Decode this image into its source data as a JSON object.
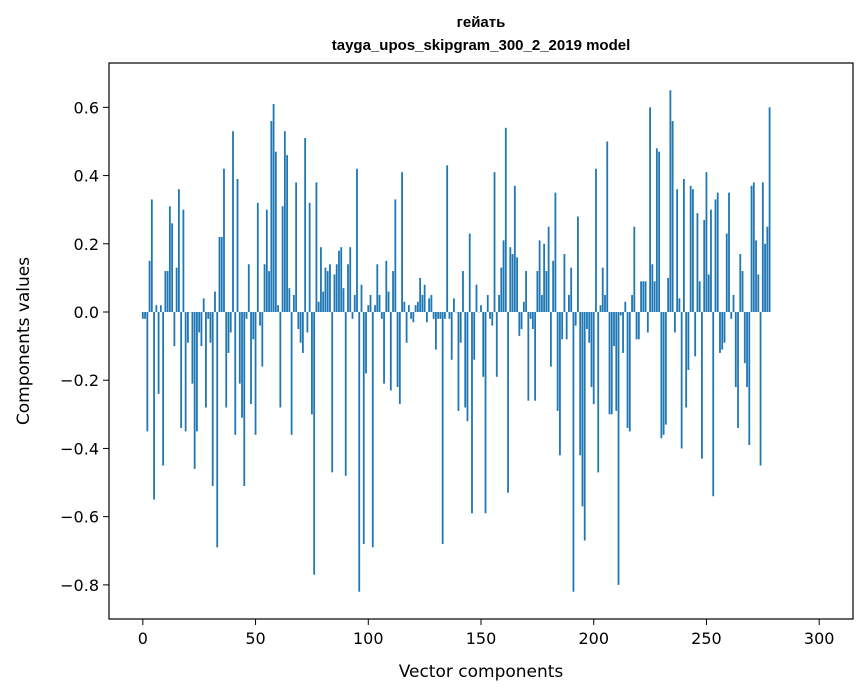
{
  "chart_data": {
    "type": "bar",
    "title": "гейать",
    "subtitle": "tayga_upos_skipgram_300_2_2019 model",
    "xlabel": "Vector components",
    "ylabel": "Components values",
    "xlim": [
      -15,
      315
    ],
    "ylim": [
      -0.9,
      0.73
    ],
    "xticks": [
      0,
      50,
      100,
      150,
      200,
      250,
      300
    ],
    "xtick_labels": [
      "0",
      "50",
      "100",
      "150",
      "200",
      "250",
      "300"
    ],
    "yticks": [
      -0.8,
      -0.6,
      -0.4,
      -0.2,
      0.0,
      0.2,
      0.4,
      0.6
    ],
    "ytick_labels": [
      "−0.8",
      "−0.6",
      "−0.4",
      "−0.2",
      "0.0",
      "0.2",
      "0.4",
      "0.6"
    ],
    "grid": false,
    "bar_color": "#1f77b4",
    "x_start": 0,
    "values": [
      -0.02,
      -0.02,
      -0.35,
      0.15,
      0.33,
      -0.55,
      0.02,
      -0.24,
      0.02,
      -0.45,
      0.12,
      0.12,
      0.31,
      0.26,
      -0.1,
      0.13,
      0.36,
      -0.34,
      0.3,
      -0.35,
      -0.09,
      0.0,
      -0.21,
      -0.46,
      -0.35,
      -0.06,
      -0.1,
      0.04,
      -0.28,
      -0.02,
      -0.09,
      -0.51,
      0.06,
      -0.69,
      0.22,
      0.22,
      0.42,
      -0.28,
      -0.12,
      -0.06,
      0.53,
      -0.36,
      0.39,
      -0.21,
      -0.31,
      -0.51,
      -0.02,
      0.14,
      -0.27,
      -0.08,
      -0.36,
      0.32,
      -0.04,
      -0.16,
      0.14,
      0.3,
      0.12,
      0.56,
      0.61,
      0.47,
      0.02,
      -0.28,
      0.31,
      0.53,
      0.46,
      0.07,
      -0.36,
      0.05,
      0.38,
      -0.05,
      -0.09,
      -0.12,
      0.51,
      -0.06,
      0.32,
      -0.3,
      -0.77,
      0.38,
      0.03,
      0.19,
      0.06,
      0.13,
      0.12,
      0.14,
      -0.47,
      0.11,
      0.14,
      0.18,
      0.19,
      0.07,
      -0.48,
      0.14,
      0.19,
      -0.02,
      0.05,
      0.42,
      -0.82,
      0.08,
      -0.68,
      -0.18,
      0.02,
      0.05,
      -0.69,
      0.02,
      0.14,
      0.05,
      -0.02,
      -0.21,
      0.15,
      0.06,
      -0.23,
      0.12,
      0.33,
      -0.22,
      -0.27,
      0.41,
      0.03,
      -0.09,
      0.02,
      -0.02,
      -0.03,
      0.02,
      0.03,
      0.1,
      0.05,
      0.08,
      -0.03,
      0.04,
      0.05,
      -0.02,
      -0.11,
      -0.02,
      -0.02,
      -0.68,
      -0.02,
      0.43,
      -0.02,
      -0.14,
      0.04,
      0.0,
      -0.29,
      -0.09,
      0.12,
      -0.28,
      -0.32,
      0.23,
      -0.59,
      -0.14,
      0.08,
      0.0,
      0.02,
      -0.19,
      -0.59,
      0.05,
      -0.02,
      -0.04,
      0.41,
      -0.19,
      0.05,
      0.13,
      0.21,
      0.54,
      -0.53,
      0.19,
      0.17,
      0.37,
      0.16,
      -0.07,
      -0.05,
      0.03,
      0.12,
      -0.26,
      -0.02,
      -0.05,
      -0.26,
      0.12,
      0.21,
      0.05,
      0.2,
      0.12,
      0.25,
      -0.16,
      0.15,
      0.35,
      -0.29,
      -0.42,
      -0.08,
      0.17,
      -0.08,
      0.05,
      0.13,
      -0.82,
      -0.04,
      0.28,
      -0.42,
      -0.57,
      -0.67,
      -0.05,
      -0.09,
      -0.22,
      -0.27,
      0.42,
      -0.47,
      0.02,
      0.13,
      0.05,
      0.5,
      -0.3,
      -0.3,
      -0.1,
      -0.29,
      -0.8,
      -0.01,
      -0.12,
      0.03,
      -0.34,
      -0.35,
      0.05,
      0.25,
      -0.08,
      -0.08,
      0.09,
      0.09,
      0.09,
      -0.06,
      0.6,
      0.14,
      0.09,
      0.48,
      0.47,
      -0.37,
      -0.36,
      -0.33,
      0.1,
      0.65,
      0.56,
      -0.06,
      0.36,
      0.04,
      -0.4,
      0.39,
      -0.28,
      -0.17,
      0.37,
      0.36,
      -0.13,
      0.29,
      0.09,
      -0.43,
      0.27,
      0.41,
      0.11,
      0.3,
      -0.54,
      0.33,
      0.35,
      -0.12,
      -0.11,
      -0.09,
      0.23,
      0.35,
      -0.02,
      0.05,
      -0.22,
      -0.34,
      0.17,
      0.12,
      -0.15,
      -0.22,
      -0.39,
      0.37,
      0.38,
      0.21,
      0.11,
      -0.45,
      0.38,
      0.2,
      0.25,
      0.6
    ]
  }
}
